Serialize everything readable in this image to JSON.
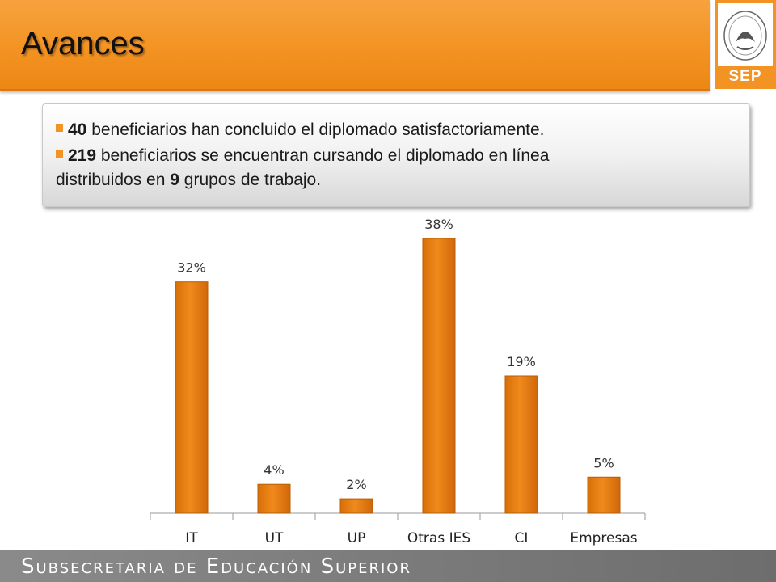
{
  "header": {
    "title": "Avances"
  },
  "logo": {
    "text": "SEP",
    "seal_text": "ESTADOS UNIDOS MEXICANOS"
  },
  "info": {
    "line1_num": "40",
    "line1_text": " beneficiarios han concluido el diplomado satisfactoriamente.",
    "line2_num": "219",
    "line2_text": " beneficiarios se encuentran cursando el diplomado en línea",
    "line3_prefix": "distribuidos en ",
    "line3_num": "9",
    "line3_text": " grupos de trabajo."
  },
  "footer": {
    "text": "Subsecretaria de Educación Superior"
  },
  "colors": {
    "accent": "#f39323",
    "bar": "#e8800f",
    "footer": "#7a7a7a"
  },
  "chart_data": {
    "type": "bar",
    "categories": [
      "IT",
      "UT",
      "UP",
      "Otras IES",
      "CI",
      "Empresas"
    ],
    "values": [
      32,
      4,
      2,
      38,
      19,
      5
    ],
    "data_labels": [
      "32%",
      "4%",
      "2%",
      "38%",
      "19%",
      "5%"
    ],
    "ylim": [
      0,
      40
    ],
    "grid": false,
    "legend": "none"
  }
}
